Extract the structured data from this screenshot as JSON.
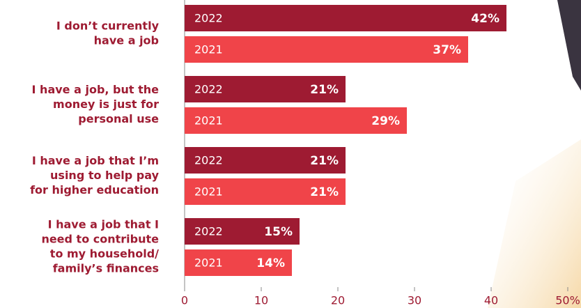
{
  "chart_data": {
    "type": "bar",
    "orientation": "horizontal",
    "categories": [
      [
        "I don’t currently",
        "have a job"
      ],
      [
        "I have a job, but the",
        "money is just for",
        "personal use"
      ],
      [
        "I have a job that I’m",
        "using to help pay",
        "for higher education"
      ],
      [
        "I have a job that I",
        "need to contribute",
        "to my household/",
        "family’s finances"
      ]
    ],
    "series": [
      {
        "name": "2022",
        "color": "#9e1b32",
        "values": [
          42,
          21,
          21,
          15
        ],
        "value_labels": [
          "42%",
          "21%",
          "21%",
          "15%"
        ]
      },
      {
        "name": "2021",
        "color": "#f04449",
        "values": [
          37,
          29,
          21,
          14
        ],
        "value_labels": [
          "37%",
          "29%",
          "21%",
          "14%"
        ]
      }
    ],
    "xlim": [
      0,
      50
    ],
    "xticks": [
      0,
      10,
      20,
      30,
      40,
      {
        "value": 50,
        "label": "50%"
      }
    ]
  }
}
